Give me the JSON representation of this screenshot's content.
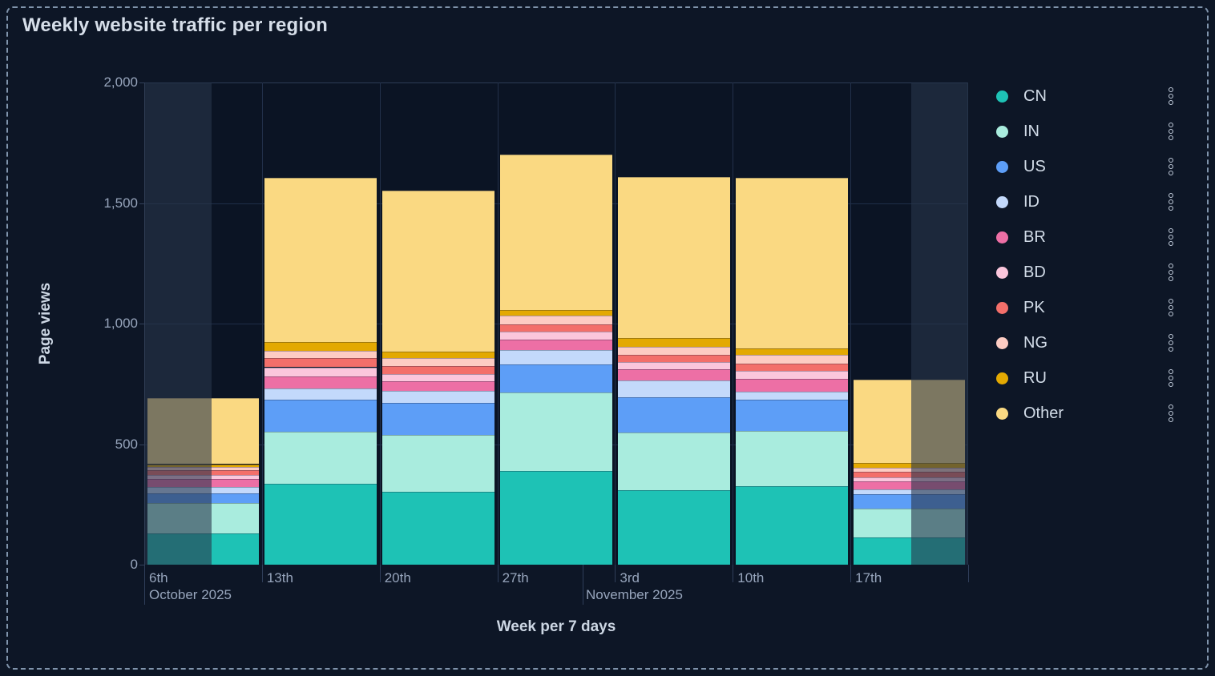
{
  "title": "Weekly website traffic per region",
  "legend": {
    "menu_icon": "kebab-dots-vertical"
  },
  "chart_data": {
    "type": "bar",
    "stacked": true,
    "title": "Weekly website traffic per region",
    "xlabel": "Week per 7 days",
    "ylabel": "Page views",
    "ylim": [
      0,
      2000
    ],
    "grid": true,
    "legend_position": "right",
    "y_ticks": [
      {
        "value": 0,
        "label": "0"
      },
      {
        "value": 500,
        "label": "500"
      },
      {
        "value": 1000,
        "label": "1,000"
      },
      {
        "value": 1500,
        "label": "1,500"
      },
      {
        "value": 2000,
        "label": "2,000"
      }
    ],
    "categories": [
      "6th",
      "13th",
      "20th",
      "27th",
      "3rd",
      "10th",
      "17th"
    ],
    "month_labels": [
      "October 2025",
      "November 2025"
    ],
    "note": "first and last week bars are partially faded (out-of-range portion of week)",
    "series": [
      {
        "name": "CN",
        "color": "#1ec2b5",
        "values": [
          130,
          335,
          302,
          390,
          310,
          325,
          114
        ]
      },
      {
        "name": "IN",
        "color": "#a9ecde",
        "values": [
          125,
          215,
          235,
          325,
          238,
          229,
          119
        ]
      },
      {
        "name": "US",
        "color": "#5d9ef7",
        "values": [
          40,
          133,
          135,
          114,
          146,
          130,
          61
        ]
      },
      {
        "name": "ID",
        "color": "#c3d9fb",
        "values": [
          28,
          47,
          48,
          63,
          70,
          33,
          20
        ]
      },
      {
        "name": "BR",
        "color": "#ed6fa5",
        "values": [
          33,
          50,
          42,
          42,
          46,
          53,
          32
        ]
      },
      {
        "name": "BD",
        "color": "#fbc6dc",
        "values": [
          17,
          39,
          30,
          33,
          31,
          35,
          17
        ]
      },
      {
        "name": "PK",
        "color": "#f36f6a",
        "values": [
          19,
          38,
          33,
          31,
          28,
          28,
          22
        ]
      },
      {
        "name": "NG",
        "color": "#fdccc3",
        "values": [
          12,
          30,
          33,
          35,
          35,
          36,
          18
        ]
      },
      {
        "name": "RU",
        "color": "#e3a902",
        "values": [
          13,
          35,
          25,
          24,
          37,
          28,
          19
        ]
      },
      {
        "name": "Other",
        "color": "#fad982",
        "values": [
          275,
          683,
          667,
          645,
          668,
          708,
          345
        ]
      }
    ]
  }
}
